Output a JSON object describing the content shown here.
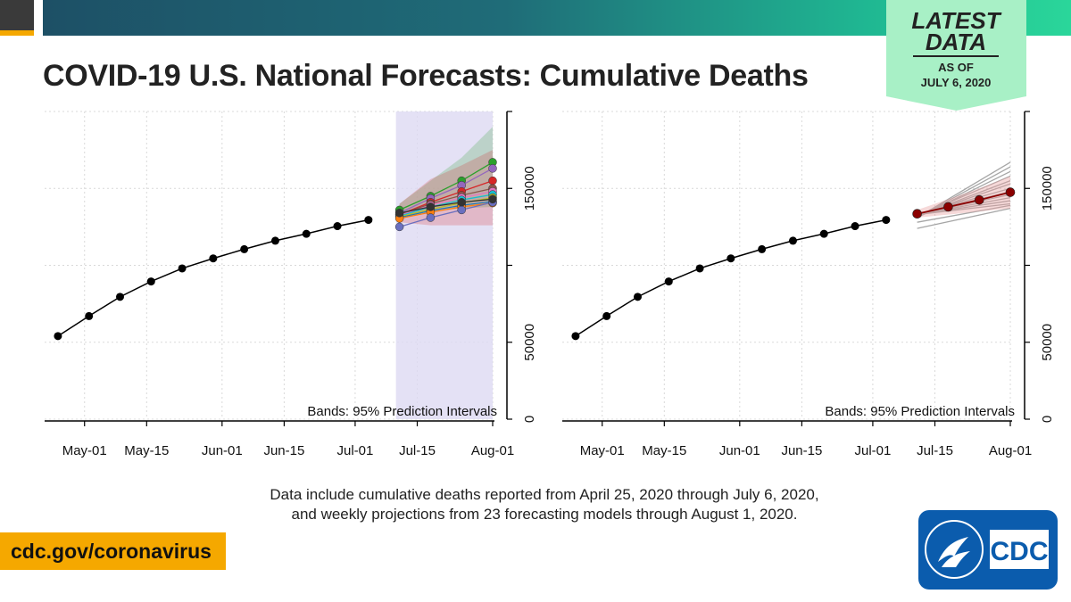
{
  "header": {
    "title": "COVID-19 U.S. National Forecasts: Cumulative Deaths",
    "colors": {
      "dark": "#3a3a3a",
      "gold": "#f5a800",
      "gradient_start": "#1d5066",
      "gradient_end": "#2ad69a"
    }
  },
  "badge": {
    "line1": "LATEST",
    "line2": "DATA",
    "line3": "AS OF",
    "line4": "JULY 6, 2020",
    "color": "#a8f0c6"
  },
  "chart_data": [
    {
      "type": "line",
      "panel": "left",
      "annotation": "Bands: 95% Prediction Intervals",
      "x_ticks": [
        "May-01",
        "May-15",
        "Jun-01",
        "Jun-15",
        "Jul-01",
        "Jul-15",
        "Aug-01"
      ],
      "y_ticks": [
        "0",
        "50000",
        "150000"
      ],
      "ylim": [
        0,
        200000
      ],
      "grid": true,
      "band_shading": "#ddd9f2",
      "observed": {
        "dates": [
          "Apr-25",
          "May-02",
          "May-09",
          "May-16",
          "May-23",
          "May-30",
          "Jun-06",
          "Jun-13",
          "Jun-20",
          "Jun-27",
          "Jul-04"
        ],
        "values": [
          54000,
          67000,
          79500,
          89500,
          98000,
          104500,
          110500,
          116000,
          120500,
          125500,
          129500
        ]
      },
      "forecast_dates": [
        "Jul-11",
        "Jul-18",
        "Jul-25",
        "Aug-01"
      ],
      "forecasts": [
        {
          "color": "#2ca02c",
          "values": [
            136000,
            145000,
            155000,
            167000
          ],
          "band": [
            [
              132000,
              140000
            ],
            [
              135000,
              155000
            ],
            [
              137000,
              170000
            ],
            [
              138000,
              190000
            ]
          ]
        },
        {
          "color": "#9467bd",
          "values": [
            134000,
            143500,
            152000,
            163000
          ]
        },
        {
          "color": "#d62728",
          "values": [
            133000,
            141000,
            148000,
            155000
          ],
          "band": [
            [
              128000,
              140000
            ],
            [
              126000,
              156000
            ],
            [
              126000,
              165000
            ],
            [
              126000,
              175000
            ]
          ]
        },
        {
          "color": "#8c564b",
          "values": [
            133000,
            140000,
            145500,
            150000
          ]
        },
        {
          "color": "#e377c2",
          "values": [
            132500,
            139000,
            144000,
            148000
          ]
        },
        {
          "color": "#17becf",
          "values": [
            132000,
            138000,
            142500,
            146000
          ]
        },
        {
          "color": "#bcbd22",
          "values": [
            131500,
            136500,
            140500,
            144000
          ]
        },
        {
          "color": "#1f77b4",
          "values": [
            131000,
            135500,
            139000,
            141500
          ]
        },
        {
          "color": "#ff7f0e",
          "values": [
            130500,
            134500,
            138000,
            140500
          ]
        },
        {
          "color": "#6a6fbf",
          "values": [
            125000,
            131000,
            136000,
            141000
          ]
        },
        {
          "color": "#333333",
          "values": [
            134000,
            138000,
            141000,
            143000
          ]
        }
      ]
    },
    {
      "type": "line",
      "panel": "right",
      "annotation": "Bands: 95% Prediction Intervals",
      "x_ticks": [
        "May-01",
        "May-15",
        "Jun-01",
        "Jun-15",
        "Jul-01",
        "Jul-15",
        "Aug-01"
      ],
      "y_ticks": [
        "0",
        "50000",
        "150000"
      ],
      "ylim": [
        0,
        200000
      ],
      "grid": true,
      "observed": {
        "dates": [
          "Apr-25",
          "May-02",
          "May-09",
          "May-16",
          "May-23",
          "May-30",
          "Jun-06",
          "Jun-13",
          "Jun-20",
          "Jun-27",
          "Jul-04"
        ],
        "values": [
          54000,
          67000,
          79500,
          89500,
          98000,
          104500,
          110500,
          116000,
          120500,
          125500,
          129500
        ]
      },
      "forecast_dates": [
        "Jul-11",
        "Jul-18",
        "Jul-25",
        "Aug-01"
      ],
      "ensemble": {
        "color": "#8b0000",
        "values": [
          133500,
          138000,
          142500,
          147500
        ],
        "band": [
          [
            131000,
            136000
          ],
          [
            133000,
            143000
          ],
          [
            135000,
            150000
          ],
          [
            137000,
            158000
          ]
        ]
      },
      "model_endpoints": [
        [
          131000,
          167000
        ],
        [
          131000,
          164000
        ],
        [
          131000,
          161000
        ],
        [
          132000,
          158000
        ],
        [
          132000,
          155000
        ],
        [
          132000,
          153000
        ],
        [
          133000,
          150000
        ],
        [
          133000,
          148000
        ],
        [
          133000,
          146000
        ],
        [
          133000,
          144000
        ],
        [
          133000,
          142000
        ],
        [
          133000,
          140000
        ],
        [
          128000,
          139000
        ],
        [
          124000,
          137000
        ]
      ],
      "gray_color": "#a6a6a6"
    }
  ],
  "caption": {
    "line1": "Data include cumulative deaths reported from April 25, 2020 through July 6, 2020,",
    "line2": "and weekly projections from 23 forecasting models through August 1, 2020."
  },
  "footer": {
    "link": "cdc.gov/coronavirus",
    "logo_text": "CDC",
    "logo_color": "#0b5cad"
  }
}
